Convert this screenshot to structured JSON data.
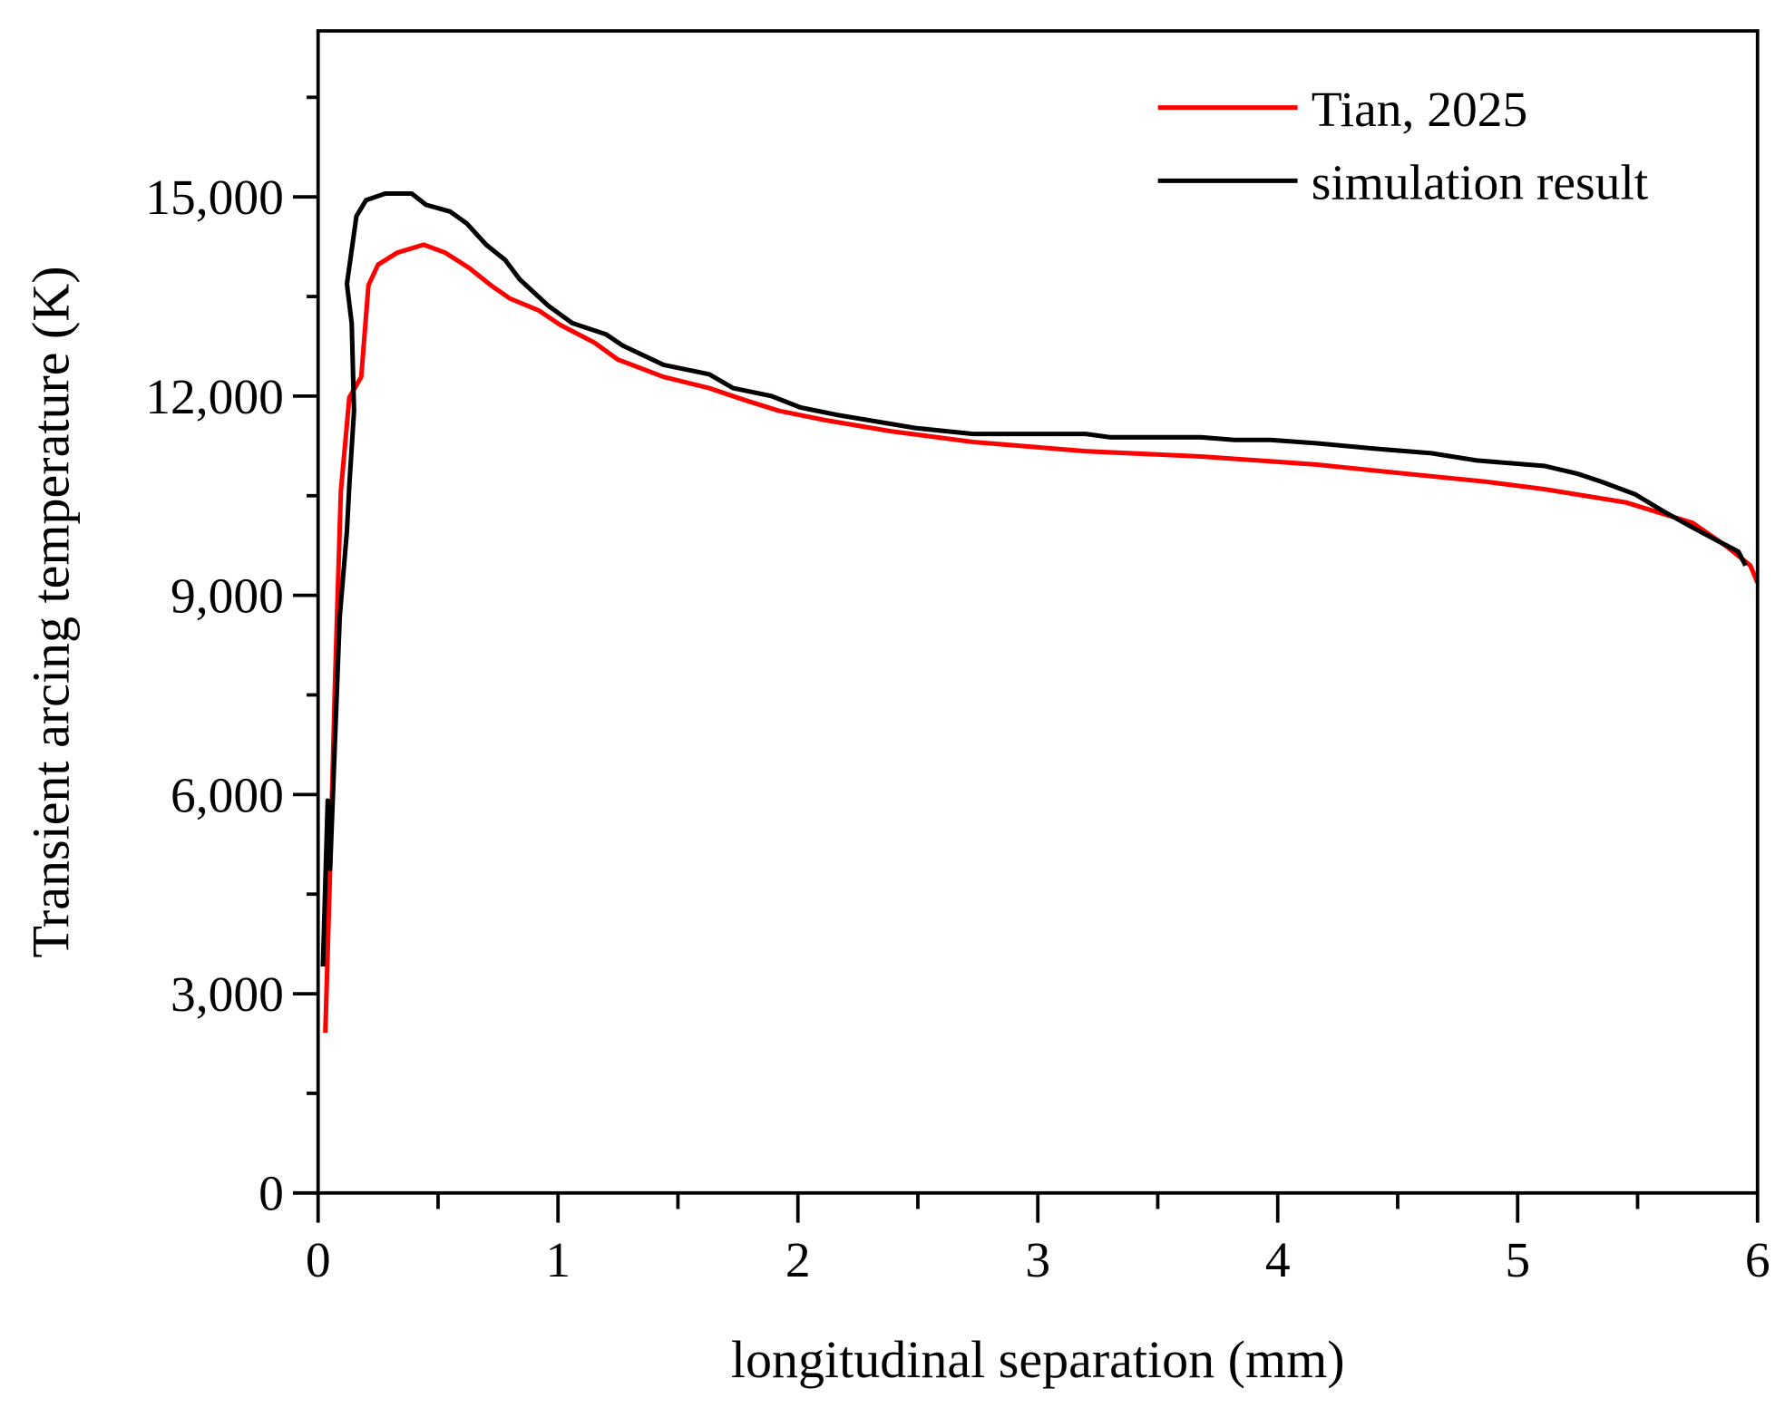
{
  "chart_data": {
    "type": "line",
    "title": "",
    "xlabel": "longitudinal separation (mm)",
    "ylabel": "Transient arcing temperature (K)",
    "xlim": [
      0,
      6
    ],
    "ylim": [
      0,
      17500
    ],
    "xticks": [
      0,
      1,
      2,
      3,
      4,
      5,
      6
    ],
    "xtick_labels": [
      "0",
      "1",
      "2",
      "3",
      "4",
      "5",
      "6"
    ],
    "yticks": [
      0,
      3000,
      6000,
      9000,
      12000,
      15000
    ],
    "ytick_labels": [
      "0",
      "3,000",
      "6,000",
      "9,000",
      "12,000",
      "15,000"
    ],
    "grid": false,
    "legend_position": "top-right",
    "series": [
      {
        "name": "Tian, 2025",
        "color": "#ff0000",
        "x": [
          0.03,
          0.05,
          0.07,
          0.095,
          0.13,
          0.18,
          0.21,
          0.25,
          0.33,
          0.44,
          0.53,
          0.63,
          0.72,
          0.8,
          0.92,
          1.01,
          1.15,
          1.25,
          1.44,
          1.63,
          1.77,
          1.92,
          2.11,
          2.39,
          2.73,
          3.2,
          3.68,
          4.16,
          4.4,
          4.87,
          5.11,
          5.45,
          5.73,
          5.87,
          5.97,
          6.0
        ],
        "y": [
          2414,
          4880,
          7640,
          10570,
          11980,
          12290,
          13670,
          13980,
          14160,
          14280,
          14160,
          13930,
          13670,
          13470,
          13290,
          13070,
          12810,
          12550,
          12290,
          12120,
          11950,
          11780,
          11640,
          11470,
          11310,
          11170,
          11090,
          10970,
          10880,
          10710,
          10600,
          10400,
          10090,
          9740,
          9450,
          9190
        ]
      },
      {
        "name": "simulation result",
        "color": "#000000",
        "x": [
          0.02,
          0.04,
          0.05,
          0.07,
          0.09,
          0.12,
          0.13,
          0.15,
          0.14,
          0.12,
          0.16,
          0.2,
          0.28,
          0.39,
          0.45,
          0.55,
          0.62,
          0.7,
          0.78,
          0.84,
          0.96,
          1.06,
          1.2,
          1.27,
          1.44,
          1.63,
          1.73,
          1.89,
          2.01,
          2.16,
          2.49,
          2.73,
          3.2,
          3.3,
          3.68,
          3.82,
          3.97,
          4.16,
          4.4,
          4.64,
          4.83,
          5.11,
          5.25,
          5.35,
          5.49,
          5.61,
          5.73,
          5.85,
          5.92,
          5.95
        ],
        "y": [
          3410,
          5910,
          4880,
          6780,
          8670,
          9970,
          10660,
          11780,
          13090,
          13690,
          14710,
          14950,
          15050,
          15050,
          14880,
          14780,
          14600,
          14280,
          14050,
          13760,
          13360,
          13100,
          12930,
          12760,
          12470,
          12330,
          12120,
          12000,
          11830,
          11720,
          11520,
          11430,
          11430,
          11380,
          11380,
          11340,
          11340,
          11290,
          11210,
          11140,
          11030,
          10950,
          10830,
          10710,
          10520,
          10260,
          10020,
          9790,
          9660,
          9450
        ]
      }
    ]
  }
}
